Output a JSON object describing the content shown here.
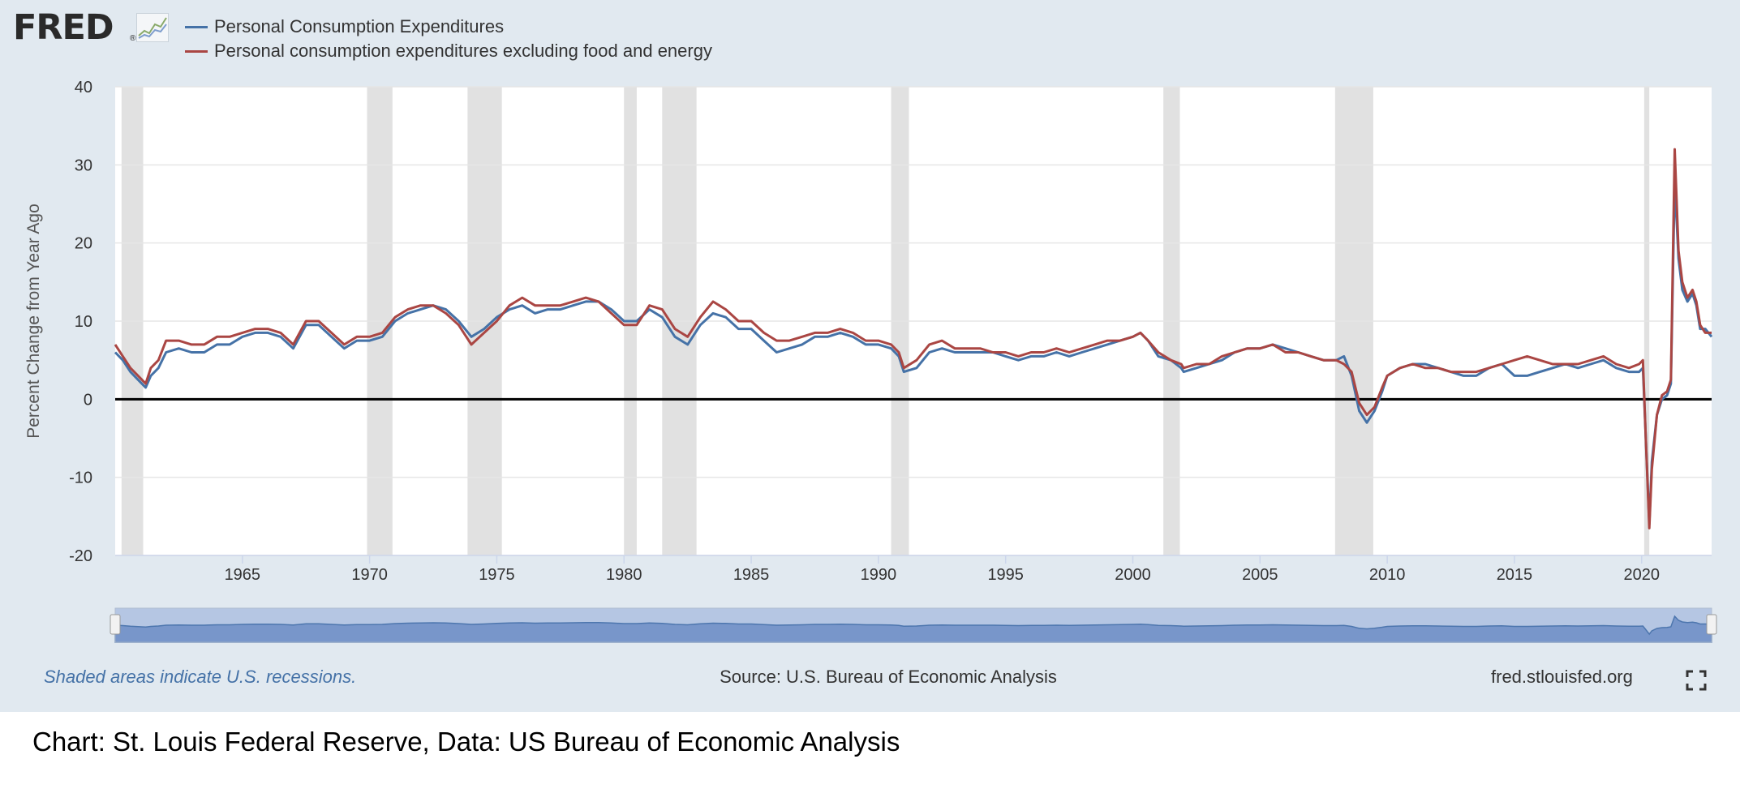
{
  "brand": {
    "logo_text": "FRED",
    "registered_mark": "®",
    "logo_icon": "trend-graph-icon"
  },
  "footer": {
    "recession_note": "Shaded areas indicate U.S. recessions.",
    "source": "Source: U.S. Bureau of Economic Analysis",
    "site": "fred.stlouisfed.org",
    "fullscreen_icon": "fullscreen-icon"
  },
  "caption": "Chart: St. Louis Federal Reserve, Data: US Bureau of Economic Analysis",
  "colors": {
    "panel_bg": "#e1e9f0",
    "plot_bg": "#ffffff",
    "pce": "#4572a7",
    "core": "#aa4643",
    "recession": "#e1e1e1",
    "zero_line": "#000000",
    "grid": "#e6e6e6",
    "navigator_fill": "#7e9dcd"
  },
  "chart_data": {
    "type": "line",
    "title": "",
    "ylabel": "Percent Change from Year Ago",
    "xlabel": "",
    "xlim": [
      1960.0,
      2022.75
    ],
    "ylim": [
      -20,
      40
    ],
    "y_ticks": [
      -20,
      -10,
      0,
      10,
      20,
      30,
      40
    ],
    "x_ticks": [
      1965,
      1970,
      1975,
      1980,
      1985,
      1990,
      1995,
      2000,
      2005,
      2010,
      2015,
      2020
    ],
    "grid": true,
    "legend_position": "top-left",
    "recession_periods": [
      [
        1960.25,
        1961.1
      ],
      [
        1969.9,
        1970.9
      ],
      [
        1973.85,
        1975.2
      ],
      [
        1980.0,
        1980.5
      ],
      [
        1981.5,
        1982.85
      ],
      [
        1990.5,
        1991.2
      ],
      [
        2001.2,
        2001.85
      ],
      [
        2007.95,
        2009.45
      ],
      [
        2020.1,
        2020.3
      ]
    ],
    "series": [
      {
        "name": "Personal Consumption Expenditures",
        "color": "#4572a7",
        "points": [
          [
            1960.0,
            6.0
          ],
          [
            1960.3,
            5.0
          ],
          [
            1960.6,
            3.5
          ],
          [
            1960.9,
            2.5
          ],
          [
            1961.2,
            1.5
          ],
          [
            1961.4,
            3.0
          ],
          [
            1961.7,
            4.0
          ],
          [
            1962.0,
            6.0
          ],
          [
            1962.5,
            6.5
          ],
          [
            1963.0,
            6.0
          ],
          [
            1963.5,
            6.0
          ],
          [
            1964.0,
            7.0
          ],
          [
            1964.5,
            7.0
          ],
          [
            1965.0,
            8.0
          ],
          [
            1965.5,
            8.5
          ],
          [
            1966.0,
            8.5
          ],
          [
            1966.5,
            8.0
          ],
          [
            1967.0,
            6.5
          ],
          [
            1967.5,
            9.5
          ],
          [
            1968.0,
            9.5
          ],
          [
            1968.5,
            8.0
          ],
          [
            1969.0,
            6.5
          ],
          [
            1969.5,
            7.5
          ],
          [
            1970.0,
            7.5
          ],
          [
            1970.5,
            8.0
          ],
          [
            1971.0,
            10.0
          ],
          [
            1971.5,
            11.0
          ],
          [
            1972.0,
            11.5
          ],
          [
            1972.5,
            12.0
          ],
          [
            1973.0,
            11.5
          ],
          [
            1973.5,
            10.0
          ],
          [
            1974.0,
            8.0
          ],
          [
            1974.5,
            9.0
          ],
          [
            1975.0,
            10.5
          ],
          [
            1975.5,
            11.5
          ],
          [
            1976.0,
            12.0
          ],
          [
            1976.5,
            11.0
          ],
          [
            1977.0,
            11.5
          ],
          [
            1977.5,
            11.5
          ],
          [
            1978.0,
            12.0
          ],
          [
            1978.5,
            12.5
          ],
          [
            1979.0,
            12.5
          ],
          [
            1979.5,
            11.5
          ],
          [
            1980.0,
            10.0
          ],
          [
            1980.5,
            10.0
          ],
          [
            1981.0,
            11.5
          ],
          [
            1981.5,
            10.5
          ],
          [
            1982.0,
            8.0
          ],
          [
            1982.5,
            7.0
          ],
          [
            1983.0,
            9.5
          ],
          [
            1983.5,
            11.0
          ],
          [
            1984.0,
            10.5
          ],
          [
            1984.5,
            9.0
          ],
          [
            1985.0,
            9.0
          ],
          [
            1985.5,
            7.5
          ],
          [
            1986.0,
            6.0
          ],
          [
            1986.5,
            6.5
          ],
          [
            1987.0,
            7.0
          ],
          [
            1987.5,
            8.0
          ],
          [
            1988.0,
            8.0
          ],
          [
            1988.5,
            8.5
          ],
          [
            1989.0,
            8.0
          ],
          [
            1989.5,
            7.0
          ],
          [
            1990.0,
            7.0
          ],
          [
            1990.5,
            6.5
          ],
          [
            1990.8,
            5.5
          ],
          [
            1991.0,
            3.5
          ],
          [
            1991.5,
            4.0
          ],
          [
            1992.0,
            6.0
          ],
          [
            1992.5,
            6.5
          ],
          [
            1993.0,
            6.0
          ],
          [
            1993.5,
            6.0
          ],
          [
            1994.0,
            6.0
          ],
          [
            1994.5,
            6.0
          ],
          [
            1995.0,
            5.5
          ],
          [
            1995.5,
            5.0
          ],
          [
            1996.0,
            5.5
          ],
          [
            1996.5,
            5.5
          ],
          [
            1997.0,
            6.0
          ],
          [
            1997.5,
            5.5
          ],
          [
            1998.0,
            6.0
          ],
          [
            1998.5,
            6.5
          ],
          [
            1999.0,
            7.0
          ],
          [
            1999.5,
            7.5
          ],
          [
            2000.0,
            8.0
          ],
          [
            2000.3,
            8.5
          ],
          [
            2000.6,
            7.5
          ],
          [
            2001.0,
            5.5
          ],
          [
            2001.5,
            5.0
          ],
          [
            2001.9,
            4.0
          ],
          [
            2002.0,
            3.5
          ],
          [
            2002.5,
            4.0
          ],
          [
            2003.0,
            4.5
          ],
          [
            2003.5,
            5.0
          ],
          [
            2004.0,
            6.0
          ],
          [
            2004.5,
            6.5
          ],
          [
            2005.0,
            6.5
          ],
          [
            2005.5,
            7.0
          ],
          [
            2006.0,
            6.5
          ],
          [
            2006.5,
            6.0
          ],
          [
            2007.0,
            5.5
          ],
          [
            2007.5,
            5.0
          ],
          [
            2008.0,
            5.0
          ],
          [
            2008.3,
            5.5
          ],
          [
            2008.6,
            3.0
          ],
          [
            2008.9,
            -1.5
          ],
          [
            2009.2,
            -3.0
          ],
          [
            2009.5,
            -1.5
          ],
          [
            2009.8,
            1.0
          ],
          [
            2010.0,
            3.0
          ],
          [
            2010.5,
            4.0
          ],
          [
            2011.0,
            4.5
          ],
          [
            2011.5,
            4.5
          ],
          [
            2012.0,
            4.0
          ],
          [
            2012.5,
            3.5
          ],
          [
            2013.0,
            3.0
          ],
          [
            2013.5,
            3.0
          ],
          [
            2014.0,
            4.0
          ],
          [
            2014.5,
            4.5
          ],
          [
            2015.0,
            3.0
          ],
          [
            2015.5,
            3.0
          ],
          [
            2016.0,
            3.5
          ],
          [
            2016.5,
            4.0
          ],
          [
            2017.0,
            4.5
          ],
          [
            2017.5,
            4.0
          ],
          [
            2018.0,
            4.5
          ],
          [
            2018.5,
            5.0
          ],
          [
            2019.0,
            4.0
          ],
          [
            2019.5,
            3.5
          ],
          [
            2019.9,
            3.5
          ],
          [
            2020.05,
            4.0
          ],
          [
            2020.15,
            -4.0
          ],
          [
            2020.3,
            -16.0
          ],
          [
            2020.4,
            -8.0
          ],
          [
            2020.6,
            -2.0
          ],
          [
            2020.8,
            0.0
          ],
          [
            2021.0,
            0.5
          ],
          [
            2021.15,
            2.0
          ],
          [
            2021.3,
            28.0
          ],
          [
            2021.45,
            18.0
          ],
          [
            2021.6,
            14.0
          ],
          [
            2021.8,
            12.5
          ],
          [
            2022.0,
            13.5
          ],
          [
            2022.15,
            12.0
          ],
          [
            2022.3,
            9.0
          ],
          [
            2022.5,
            9.0
          ],
          [
            2022.75,
            8.0
          ]
        ]
      },
      {
        "name": "Personal consumption expenditures excluding food and energy",
        "color": "#aa4643",
        "points": [
          [
            1960.0,
            7.0
          ],
          [
            1960.3,
            5.5
          ],
          [
            1960.6,
            4.0
          ],
          [
            1960.9,
            3.0
          ],
          [
            1961.2,
            2.0
          ],
          [
            1961.4,
            4.0
          ],
          [
            1961.7,
            5.0
          ],
          [
            1962.0,
            7.5
          ],
          [
            1962.5,
            7.5
          ],
          [
            1963.0,
            7.0
          ],
          [
            1963.5,
            7.0
          ],
          [
            1964.0,
            8.0
          ],
          [
            1964.5,
            8.0
          ],
          [
            1965.0,
            8.5
          ],
          [
            1965.5,
            9.0
          ],
          [
            1966.0,
            9.0
          ],
          [
            1966.5,
            8.5
          ],
          [
            1967.0,
            7.0
          ],
          [
            1967.5,
            10.0
          ],
          [
            1968.0,
            10.0
          ],
          [
            1968.5,
            8.5
          ],
          [
            1969.0,
            7.0
          ],
          [
            1969.5,
            8.0
          ],
          [
            1970.0,
            8.0
          ],
          [
            1970.5,
            8.5
          ],
          [
            1971.0,
            10.5
          ],
          [
            1971.5,
            11.5
          ],
          [
            1972.0,
            12.0
          ],
          [
            1972.5,
            12.0
          ],
          [
            1973.0,
            11.0
          ],
          [
            1973.5,
            9.5
          ],
          [
            1974.0,
            7.0
          ],
          [
            1974.5,
            8.5
          ],
          [
            1975.0,
            10.0
          ],
          [
            1975.5,
            12.0
          ],
          [
            1976.0,
            13.0
          ],
          [
            1976.5,
            12.0
          ],
          [
            1977.0,
            12.0
          ],
          [
            1977.5,
            12.0
          ],
          [
            1978.0,
            12.5
          ],
          [
            1978.5,
            13.0
          ],
          [
            1979.0,
            12.5
          ],
          [
            1979.5,
            11.0
          ],
          [
            1980.0,
            9.5
          ],
          [
            1980.5,
            9.5
          ],
          [
            1981.0,
            12.0
          ],
          [
            1981.5,
            11.5
          ],
          [
            1982.0,
            9.0
          ],
          [
            1982.5,
            8.0
          ],
          [
            1983.0,
            10.5
          ],
          [
            1983.5,
            12.5
          ],
          [
            1984.0,
            11.5
          ],
          [
            1984.5,
            10.0
          ],
          [
            1985.0,
            10.0
          ],
          [
            1985.5,
            8.5
          ],
          [
            1986.0,
            7.5
          ],
          [
            1986.5,
            7.5
          ],
          [
            1987.0,
            8.0
          ],
          [
            1987.5,
            8.5
          ],
          [
            1988.0,
            8.5
          ],
          [
            1988.5,
            9.0
          ],
          [
            1989.0,
            8.5
          ],
          [
            1989.5,
            7.5
          ],
          [
            1990.0,
            7.5
          ],
          [
            1990.5,
            7.0
          ],
          [
            1990.8,
            6.0
          ],
          [
            1991.0,
            4.0
          ],
          [
            1991.5,
            5.0
          ],
          [
            1992.0,
            7.0
          ],
          [
            1992.5,
            7.5
          ],
          [
            1993.0,
            6.5
          ],
          [
            1993.5,
            6.5
          ],
          [
            1994.0,
            6.5
          ],
          [
            1994.5,
            6.0
          ],
          [
            1995.0,
            6.0
          ],
          [
            1995.5,
            5.5
          ],
          [
            1996.0,
            6.0
          ],
          [
            1996.5,
            6.0
          ],
          [
            1997.0,
            6.5
          ],
          [
            1997.5,
            6.0
          ],
          [
            1998.0,
            6.5
          ],
          [
            1998.5,
            7.0
          ],
          [
            1999.0,
            7.5
          ],
          [
            1999.5,
            7.5
          ],
          [
            2000.0,
            8.0
          ],
          [
            2000.3,
            8.5
          ],
          [
            2000.6,
            7.5
          ],
          [
            2001.0,
            6.0
          ],
          [
            2001.5,
            5.0
          ],
          [
            2001.9,
            4.5
          ],
          [
            2002.0,
            4.0
          ],
          [
            2002.5,
            4.5
          ],
          [
            2003.0,
            4.5
          ],
          [
            2003.5,
            5.5
          ],
          [
            2004.0,
            6.0
          ],
          [
            2004.5,
            6.5
          ],
          [
            2005.0,
            6.5
          ],
          [
            2005.5,
            7.0
          ],
          [
            2006.0,
            6.0
          ],
          [
            2006.5,
            6.0
          ],
          [
            2007.0,
            5.5
          ],
          [
            2007.5,
            5.0
          ],
          [
            2008.0,
            5.0
          ],
          [
            2008.3,
            4.5
          ],
          [
            2008.6,
            3.5
          ],
          [
            2008.9,
            -0.5
          ],
          [
            2009.2,
            -2.0
          ],
          [
            2009.5,
            -1.0
          ],
          [
            2009.8,
            1.5
          ],
          [
            2010.0,
            3.0
          ],
          [
            2010.5,
            4.0
          ],
          [
            2011.0,
            4.5
          ],
          [
            2011.5,
            4.0
          ],
          [
            2012.0,
            4.0
          ],
          [
            2012.5,
            3.5
          ],
          [
            2013.0,
            3.5
          ],
          [
            2013.5,
            3.5
          ],
          [
            2014.0,
            4.0
          ],
          [
            2014.5,
            4.5
          ],
          [
            2015.0,
            5.0
          ],
          [
            2015.5,
            5.5
          ],
          [
            2016.0,
            5.0
          ],
          [
            2016.5,
            4.5
          ],
          [
            2017.0,
            4.5
          ],
          [
            2017.5,
            4.5
          ],
          [
            2018.0,
            5.0
          ],
          [
            2018.5,
            5.5
          ],
          [
            2019.0,
            4.5
          ],
          [
            2019.5,
            4.0
          ],
          [
            2019.9,
            4.5
          ],
          [
            2020.05,
            5.0
          ],
          [
            2020.15,
            -4.0
          ],
          [
            2020.3,
            -16.5
          ],
          [
            2020.4,
            -9.0
          ],
          [
            2020.6,
            -2.0
          ],
          [
            2020.8,
            0.5
          ],
          [
            2021.0,
            1.0
          ],
          [
            2021.15,
            2.5
          ],
          [
            2021.3,
            32.0
          ],
          [
            2021.45,
            19.0
          ],
          [
            2021.6,
            15.0
          ],
          [
            2021.8,
            13.0
          ],
          [
            2022.0,
            14.0
          ],
          [
            2022.15,
            12.5
          ],
          [
            2022.3,
            9.5
          ],
          [
            2022.5,
            8.5
          ],
          [
            2022.75,
            8.5
          ]
        ]
      }
    ]
  }
}
